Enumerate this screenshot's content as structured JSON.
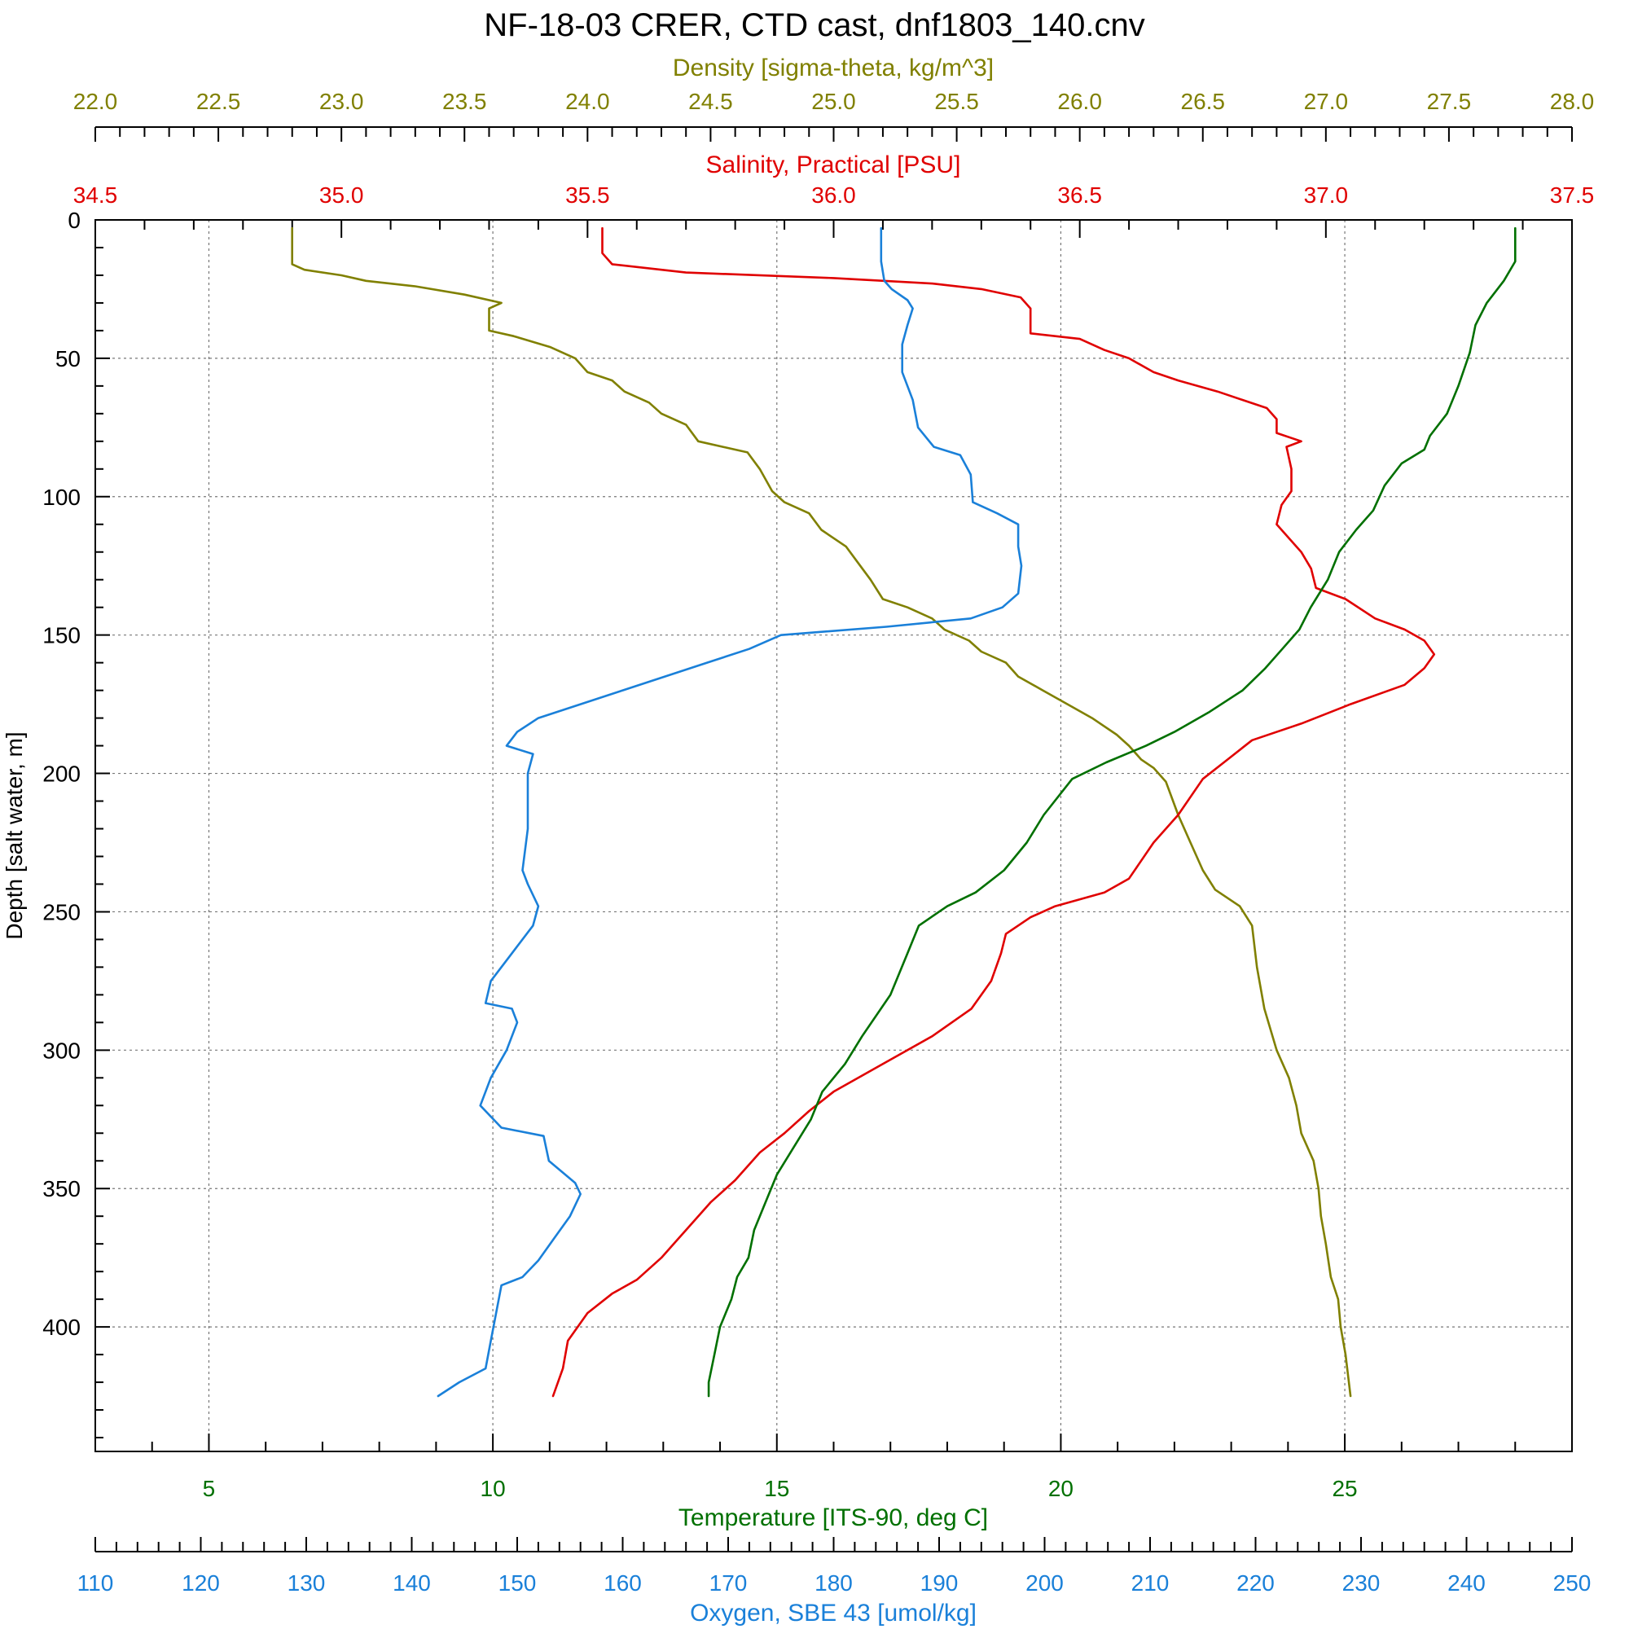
{
  "chart_data": {
    "type": "line",
    "title": "NF-18-03 CRER, CTD cast, dnf1803_140.cnv",
    "grid": true,
    "y_axis": {
      "label": "Depth [salt water, m]",
      "range": [
        0,
        445
      ],
      "inverted": true,
      "ticks": [
        0,
        50,
        100,
        150,
        200,
        250,
        300,
        350,
        400
      ]
    },
    "x_axes": [
      {
        "id": "density",
        "label": "Density [sigma-theta, kg/m^3]",
        "position": "top-outer",
        "color": "#808000",
        "range": [
          22.0,
          28.0
        ],
        "ticks": [
          "22.0",
          "22.5",
          "23.0",
          "23.5",
          "24.0",
          "24.5",
          "25.0",
          "25.5",
          "26.0",
          "26.5",
          "27.0",
          "27.5",
          "28.0"
        ]
      },
      {
        "id": "salinity",
        "label": "Salinity, Practical [PSU]",
        "position": "top-inner",
        "color": "#e00000",
        "range": [
          34.5,
          37.5
        ],
        "ticks": [
          "34.5",
          "35.0",
          "35.5",
          "36.0",
          "36.5",
          "37.0",
          "37.5"
        ]
      },
      {
        "id": "temperature",
        "label": "Temperature [ITS-90, deg C]",
        "position": "bottom-inner",
        "color": "#007000",
        "range": [
          3.0,
          29.0
        ],
        "ticks": [
          "5",
          "10",
          "15",
          "20",
          "25"
        ]
      },
      {
        "id": "oxygen",
        "label": "Oxygen, SBE 43 [umol/kg]",
        "position": "bottom-outer",
        "color": "#1a80d9",
        "range": [
          110,
          250
        ],
        "ticks": [
          "110",
          "120",
          "130",
          "140",
          "150",
          "160",
          "170",
          "180",
          "190",
          "200",
          "210",
          "220",
          "230",
          "240",
          "250"
        ]
      }
    ],
    "series": [
      {
        "axis": "density",
        "color": "#808000",
        "points": [
          [
            22.8,
            3
          ],
          [
            22.8,
            16
          ],
          [
            22.85,
            18
          ],
          [
            23.0,
            20
          ],
          [
            23.1,
            22
          ],
          [
            23.3,
            24
          ],
          [
            23.5,
            27
          ],
          [
            23.65,
            30
          ],
          [
            23.6,
            32
          ],
          [
            23.6,
            40
          ],
          [
            23.7,
            42
          ],
          [
            23.85,
            46
          ],
          [
            23.95,
            50
          ],
          [
            24.0,
            55
          ],
          [
            24.1,
            58
          ],
          [
            24.15,
            62
          ],
          [
            24.25,
            66
          ],
          [
            24.3,
            70
          ],
          [
            24.4,
            74
          ],
          [
            24.45,
            80
          ],
          [
            24.55,
            82
          ],
          [
            24.65,
            84
          ],
          [
            24.7,
            90
          ],
          [
            24.75,
            98
          ],
          [
            24.8,
            102
          ],
          [
            24.9,
            106
          ],
          [
            24.95,
            112
          ],
          [
            25.05,
            118
          ],
          [
            25.1,
            124
          ],
          [
            25.15,
            130
          ],
          [
            25.2,
            137
          ],
          [
            25.3,
            140
          ],
          [
            25.4,
            144
          ],
          [
            25.45,
            148
          ],
          [
            25.55,
            152
          ],
          [
            25.6,
            156
          ],
          [
            25.7,
            160
          ],
          [
            25.75,
            165
          ],
          [
            25.85,
            170
          ],
          [
            25.95,
            175
          ],
          [
            26.05,
            180
          ],
          [
            26.15,
            186
          ],
          [
            26.2,
            190
          ],
          [
            26.25,
            195
          ],
          [
            26.3,
            198
          ],
          [
            26.35,
            203
          ],
          [
            26.4,
            215
          ],
          [
            26.45,
            225
          ],
          [
            26.5,
            235
          ],
          [
            26.55,
            242
          ],
          [
            26.65,
            248
          ],
          [
            26.7,
            255
          ],
          [
            26.72,
            270
          ],
          [
            26.75,
            285
          ],
          [
            26.8,
            300
          ],
          [
            26.85,
            310
          ],
          [
            26.88,
            320
          ],
          [
            26.9,
            330
          ],
          [
            26.95,
            340
          ],
          [
            26.97,
            350
          ],
          [
            26.98,
            360
          ],
          [
            27.0,
            370
          ],
          [
            27.02,
            382
          ],
          [
            27.05,
            390
          ],
          [
            27.06,
            400
          ],
          [
            27.08,
            410
          ],
          [
            27.1,
            425
          ]
        ]
      },
      {
        "axis": "salinity",
        "color": "#e00000",
        "points": [
          [
            35.53,
            3
          ],
          [
            35.53,
            12
          ],
          [
            35.55,
            16
          ],
          [
            35.7,
            19
          ],
          [
            36.0,
            21
          ],
          [
            36.2,
            23
          ],
          [
            36.3,
            25
          ],
          [
            36.38,
            28
          ],
          [
            36.4,
            32
          ],
          [
            36.4,
            41
          ],
          [
            36.5,
            43
          ],
          [
            36.55,
            47
          ],
          [
            36.6,
            50
          ],
          [
            36.65,
            55
          ],
          [
            36.7,
            58
          ],
          [
            36.78,
            62
          ],
          [
            36.83,
            65
          ],
          [
            36.88,
            68
          ],
          [
            36.9,
            72
          ],
          [
            36.9,
            77
          ],
          [
            36.95,
            80
          ],
          [
            36.92,
            82
          ],
          [
            36.93,
            90
          ],
          [
            36.93,
            98
          ],
          [
            36.91,
            103
          ],
          [
            36.9,
            110
          ],
          [
            36.95,
            120
          ],
          [
            36.97,
            126
          ],
          [
            36.98,
            133
          ],
          [
            37.04,
            137
          ],
          [
            37.1,
            144
          ],
          [
            37.16,
            148
          ],
          [
            37.2,
            152
          ],
          [
            37.22,
            157
          ],
          [
            37.2,
            162
          ],
          [
            37.16,
            168
          ],
          [
            37.05,
            175
          ],
          [
            36.95,
            182
          ],
          [
            36.85,
            188
          ],
          [
            36.8,
            195
          ],
          [
            36.75,
            202
          ],
          [
            36.7,
            215
          ],
          [
            36.65,
            225
          ],
          [
            36.6,
            238
          ],
          [
            36.55,
            243
          ],
          [
            36.45,
            248
          ],
          [
            36.4,
            252
          ],
          [
            36.35,
            258
          ],
          [
            36.34,
            265
          ],
          [
            36.32,
            275
          ],
          [
            36.28,
            285
          ],
          [
            36.2,
            295
          ],
          [
            36.1,
            305
          ],
          [
            36.0,
            315
          ],
          [
            35.95,
            322
          ],
          [
            35.9,
            330
          ],
          [
            35.85,
            337
          ],
          [
            35.8,
            347
          ],
          [
            35.75,
            355
          ],
          [
            35.7,
            365
          ],
          [
            35.65,
            375
          ],
          [
            35.6,
            383
          ],
          [
            35.55,
            388
          ],
          [
            35.5,
            395
          ],
          [
            35.46,
            405
          ],
          [
            35.45,
            415
          ],
          [
            35.43,
            425
          ]
        ]
      },
      {
        "axis": "temperature",
        "color": "#007000",
        "points": [
          [
            28.0,
            3
          ],
          [
            28.0,
            15
          ],
          [
            27.8,
            22
          ],
          [
            27.5,
            30
          ],
          [
            27.3,
            38
          ],
          [
            27.2,
            48
          ],
          [
            27.0,
            60
          ],
          [
            26.8,
            70
          ],
          [
            26.5,
            78
          ],
          [
            26.4,
            83
          ],
          [
            26.0,
            88
          ],
          [
            25.7,
            96
          ],
          [
            25.5,
            105
          ],
          [
            25.2,
            112
          ],
          [
            24.9,
            120
          ],
          [
            24.7,
            130
          ],
          [
            24.4,
            140
          ],
          [
            24.2,
            148
          ],
          [
            23.9,
            155
          ],
          [
            23.6,
            162
          ],
          [
            23.2,
            170
          ],
          [
            22.6,
            178
          ],
          [
            22.0,
            185
          ],
          [
            21.5,
            190
          ],
          [
            20.8,
            196
          ],
          [
            20.2,
            202
          ],
          [
            19.7,
            215
          ],
          [
            19.4,
            225
          ],
          [
            19.0,
            235
          ],
          [
            18.5,
            243
          ],
          [
            18.0,
            248
          ],
          [
            17.5,
            255
          ],
          [
            17.3,
            265
          ],
          [
            17.0,
            280
          ],
          [
            16.5,
            295
          ],
          [
            16.2,
            305
          ],
          [
            15.8,
            315
          ],
          [
            15.6,
            325
          ],
          [
            15.3,
            335
          ],
          [
            15.0,
            345
          ],
          [
            14.8,
            355
          ],
          [
            14.6,
            365
          ],
          [
            14.5,
            375
          ],
          [
            14.3,
            382
          ],
          [
            14.2,
            390
          ],
          [
            14.0,
            400
          ],
          [
            13.9,
            410
          ],
          [
            13.8,
            420
          ],
          [
            13.8,
            425
          ]
        ]
      },
      {
        "axis": "oxygen",
        "color": "#1a80d9",
        "points": [
          [
            184.5,
            3
          ],
          [
            184.5,
            15
          ],
          [
            184.8,
            22
          ],
          [
            185.5,
            25
          ],
          [
            187.0,
            29
          ],
          [
            187.5,
            32
          ],
          [
            187.0,
            38
          ],
          [
            186.5,
            45
          ],
          [
            186.5,
            55
          ],
          [
            187.5,
            65
          ],
          [
            188.0,
            75
          ],
          [
            189.5,
            82
          ],
          [
            192.0,
            85
          ],
          [
            193.0,
            92
          ],
          [
            193.2,
            102
          ],
          [
            195.5,
            106
          ],
          [
            197.5,
            110
          ],
          [
            197.5,
            118
          ],
          [
            197.8,
            125
          ],
          [
            197.5,
            135
          ],
          [
            196.0,
            140
          ],
          [
            193.0,
            144
          ],
          [
            185.0,
            147
          ],
          [
            175.0,
            150
          ],
          [
            172.0,
            155
          ],
          [
            168.0,
            160
          ],
          [
            164.0,
            165
          ],
          [
            160.0,
            170
          ],
          [
            156.0,
            175
          ],
          [
            152.0,
            180
          ],
          [
            150.0,
            185
          ],
          [
            149.0,
            190
          ],
          [
            151.5,
            193
          ],
          [
            151.0,
            200
          ],
          [
            151.0,
            220
          ],
          [
            150.5,
            235
          ],
          [
            151.0,
            240
          ],
          [
            152.0,
            248
          ],
          [
            151.5,
            255
          ],
          [
            149.5,
            265
          ],
          [
            147.5,
            275
          ],
          [
            147.0,
            283
          ],
          [
            149.5,
            285
          ],
          [
            150.0,
            290
          ],
          [
            149.0,
            300
          ],
          [
            147.5,
            310
          ],
          [
            146.5,
            320
          ],
          [
            148.5,
            328
          ],
          [
            152.5,
            331
          ],
          [
            153.0,
            340
          ],
          [
            155.5,
            348
          ],
          [
            156.0,
            352
          ],
          [
            155.0,
            360
          ],
          [
            153.5,
            368
          ],
          [
            152.0,
            376
          ],
          [
            150.5,
            382
          ],
          [
            148.5,
            385
          ],
          [
            148.0,
            395
          ],
          [
            147.5,
            405
          ],
          [
            147.0,
            415
          ],
          [
            144.5,
            420
          ],
          [
            142.5,
            425
          ]
        ]
      }
    ]
  }
}
